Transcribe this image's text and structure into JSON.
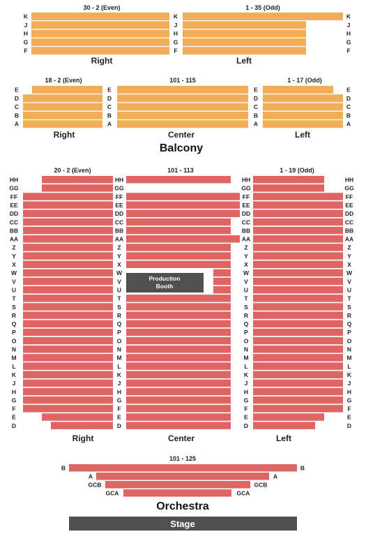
{
  "colors": {
    "upper": "#f1ad58",
    "lower": "#df6464",
    "booth": "#505050",
    "stage": "#505050"
  },
  "upper_top": {
    "right_header": "30 - 2 (Even)",
    "left_header": "1 - 35 (Odd)",
    "rows": [
      "K",
      "J",
      "H",
      "G",
      "F"
    ],
    "right_label": "Right",
    "left_label": "Left"
  },
  "balcony": {
    "right_header": "18 - 2 (Even)",
    "center_header": "101 - 115",
    "left_header": "1 - 17 (Odd)",
    "rows": [
      "E",
      "D",
      "C",
      "B",
      "A"
    ],
    "right_label": "Right",
    "center_label": "Center",
    "left_label": "Left",
    "title": "Balcony"
  },
  "orchestra": {
    "right_header": "20 - 2 (Even)",
    "center_header": "101 - 113",
    "left_header": "1 - 19 (Odd)",
    "rows": [
      "HH",
      "GG",
      "FF",
      "EE",
      "DD",
      "CC",
      "BB",
      "AA",
      "Z",
      "Y",
      "X",
      "W",
      "V",
      "U",
      "T",
      "S",
      "R",
      "Q",
      "P",
      "O",
      "N",
      "M",
      "L",
      "K",
      "J",
      "H",
      "G",
      "F",
      "E",
      "D"
    ],
    "right_label": "Right",
    "center_label": "Center",
    "left_label": "Left",
    "booth_line1": "Production",
    "booth_line2": "Booth",
    "front_header": "101 - 125",
    "front_rows": [
      "B",
      "A",
      "GCB",
      "GCA"
    ],
    "title": "Orchestra"
  },
  "stage": {
    "label": "Stage"
  }
}
